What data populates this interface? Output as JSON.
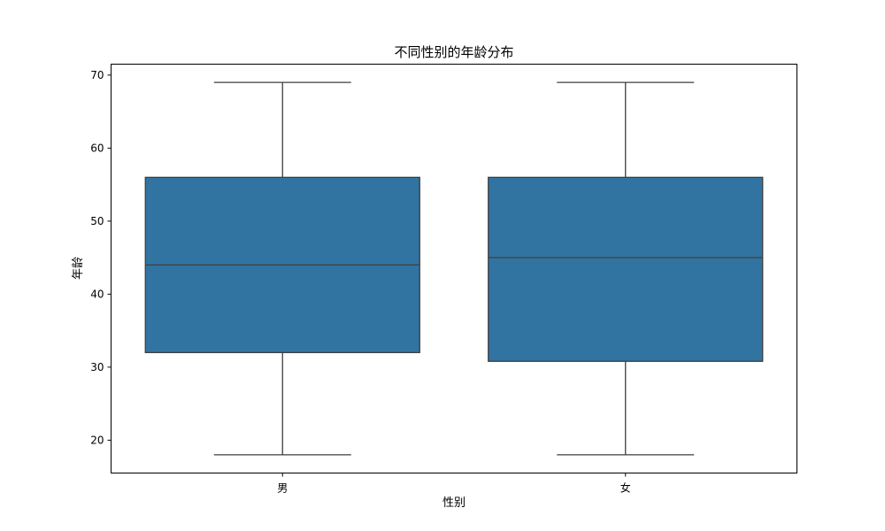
{
  "chart_data": {
    "type": "box",
    "title": "不同性别的年龄分布",
    "xlabel": "性别",
    "ylabel": "年龄",
    "categories": [
      "男",
      "女"
    ],
    "ylim": [
      15.5,
      71.5
    ],
    "yticks": [
      20,
      30,
      40,
      50,
      60,
      70
    ],
    "grid": false,
    "box_color": "#3274a1",
    "line_color": "#3f3f3f",
    "boxes": [
      {
        "category": "男",
        "whisker_low": 18,
        "q1": 32,
        "median": 44,
        "q3": 56,
        "whisker_high": 69
      },
      {
        "category": "女",
        "whisker_low": 18,
        "q1": 30.8,
        "median": 45,
        "q3": 56,
        "whisker_high": 69
      }
    ]
  }
}
